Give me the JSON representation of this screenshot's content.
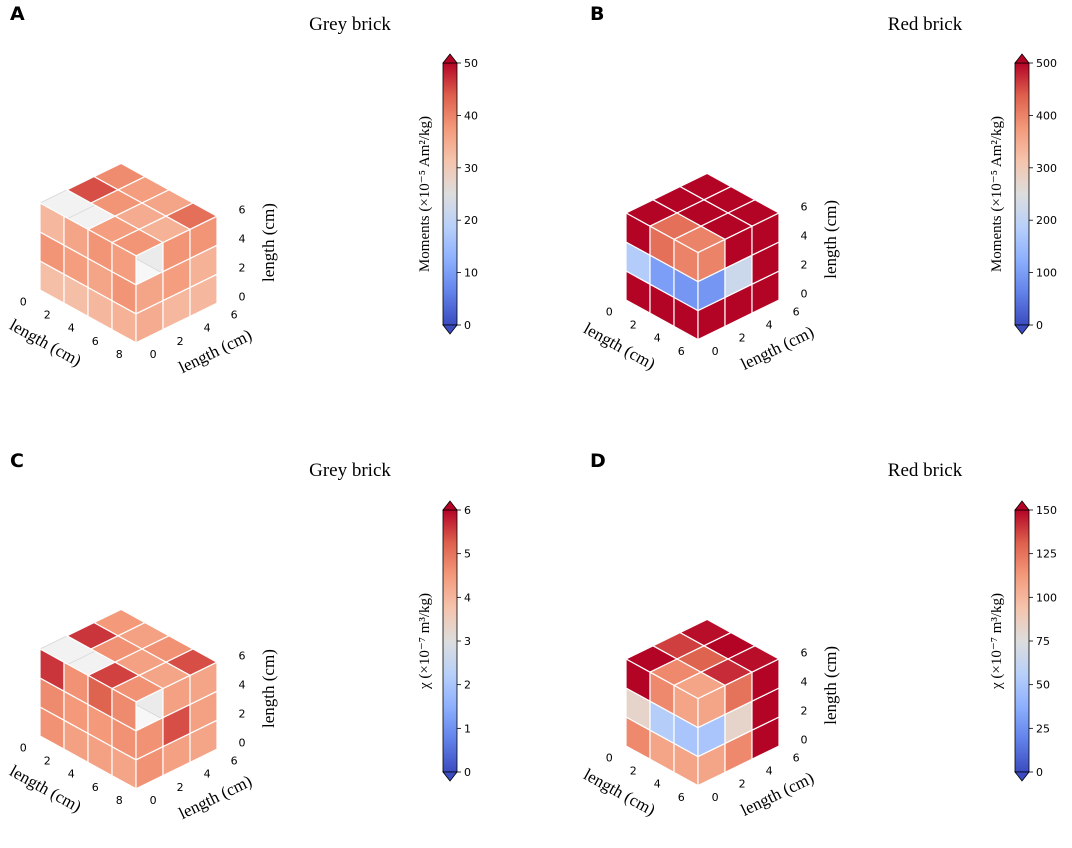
{
  "chart_data": [
    {
      "id": "A",
      "type": "voxel-3d",
      "title": "Grey brick",
      "xlabel": "length (cm)",
      "ylabel": "length (cm)",
      "zlabel": "length (cm)",
      "xticks": [
        0,
        2,
        4,
        6,
        8
      ],
      "yticks": [
        0,
        2,
        4,
        6
      ],
      "zticks": [
        0,
        2,
        4,
        6
      ],
      "colorbar": {
        "label": "Moments (×10⁻⁵ Am²/kg)",
        "min": 0,
        "max": 50,
        "ticks": [
          0,
          10,
          20,
          30,
          40,
          50
        ]
      },
      "faces": {
        "top": [
          [
            39,
            37,
            36,
            42
          ],
          [
            45,
            38,
            35,
            34
          ],
          [
            0,
            0,
            37,
            38
          ]
        ],
        "front": [
          [
            33,
            36,
            38,
            37
          ],
          [
            38,
            37,
            36,
            38
          ],
          [
            32,
            32,
            33,
            34
          ]
        ],
        "right": [
          [
            0,
            38,
            38
          ],
          [
            36,
            37,
            34
          ],
          [
            35,
            33,
            33
          ]
        ]
      }
    },
    {
      "id": "B",
      "type": "voxel-3d",
      "title": "Red brick",
      "xlabel": "length (cm)",
      "ylabel": "length (cm)",
      "zlabel": "length (cm)",
      "xticks": [
        0,
        2,
        4,
        6
      ],
      "yticks": [
        0,
        2,
        4,
        6
      ],
      "zticks": [
        0,
        2,
        4,
        6
      ],
      "colorbar": {
        "label": "Moments (×10⁻⁵ Am²/kg)",
        "min": 0,
        "max": 500,
        "ticks": [
          0,
          100,
          200,
          300,
          400,
          500
        ]
      },
      "faces": {
        "top": [
          [
            500,
            500,
            500
          ],
          [
            500,
            500,
            500
          ],
          [
            500,
            420,
            400
          ]
        ],
        "front": [
          [
            500,
            420,
            400
          ],
          [
            180,
            100,
            90
          ],
          [
            500,
            500,
            500
          ]
        ],
        "right": [
          [
            400,
            500,
            500
          ],
          [
            90,
            220,
            500
          ],
          [
            500,
            500,
            500
          ]
        ]
      }
    },
    {
      "id": "C",
      "type": "voxel-3d",
      "title": "Grey brick",
      "xlabel": "length (cm)",
      "ylabel": "length (cm)",
      "zlabel": "length (cm)",
      "xticks": [
        0,
        2,
        4,
        6,
        8
      ],
      "yticks": [
        0,
        2,
        4,
        6
      ],
      "zticks": [
        0,
        2,
        4,
        6
      ],
      "colorbar": {
        "label": "χ (×10⁻⁷ m³/kg)",
        "min": 0,
        "max": 6,
        "ticks": [
          0,
          1,
          2,
          3,
          4,
          5,
          6
        ]
      },
      "faces": {
        "top": [
          [
            4.5,
            4.4,
            4.6,
            5.4
          ],
          [
            5.6,
            4.6,
            4.4,
            4.3
          ],
          [
            0,
            0,
            5.5,
            4.6
          ]
        ],
        "front": [
          [
            5.6,
            4.6,
            5.2,
            4.7
          ],
          [
            4.7,
            4.5,
            4.5,
            4.6
          ],
          [
            4.6,
            4.4,
            4.4,
            4.3
          ]
        ],
        "right": [
          [
            0,
            4.4,
            4.3
          ],
          [
            4.6,
            5.4,
            4.4
          ],
          [
            4.6,
            4.4,
            4.3
          ]
        ]
      }
    },
    {
      "id": "D",
      "type": "voxel-3d",
      "title": "Red brick",
      "xlabel": "length (cm)",
      "ylabel": "length (cm)",
      "zlabel": "length (cm)",
      "xticks": [
        0,
        2,
        4,
        6
      ],
      "yticks": [
        0,
        2,
        4,
        6
      ],
      "zticks": [
        0,
        2,
        4,
        6
      ],
      "colorbar": {
        "label": "χ (×10⁻⁷ m³/kg)",
        "min": 0,
        "max": 150,
        "ticks": [
          0,
          25,
          50,
          75,
          100,
          125,
          150
        ]
      },
      "faces": {
        "top": [
          [
            148,
            150,
            148
          ],
          [
            138,
            130,
            142
          ],
          [
            150,
            118,
            108
          ]
        ],
        "front": [
          [
            150,
            118,
            108
          ],
          [
            82,
            55,
            50
          ],
          [
            118,
            108,
            108
          ]
        ],
        "right": [
          [
            108,
            125,
            150
          ],
          [
            50,
            82,
            150
          ],
          [
            108,
            118,
            150
          ]
        ]
      }
    }
  ]
}
